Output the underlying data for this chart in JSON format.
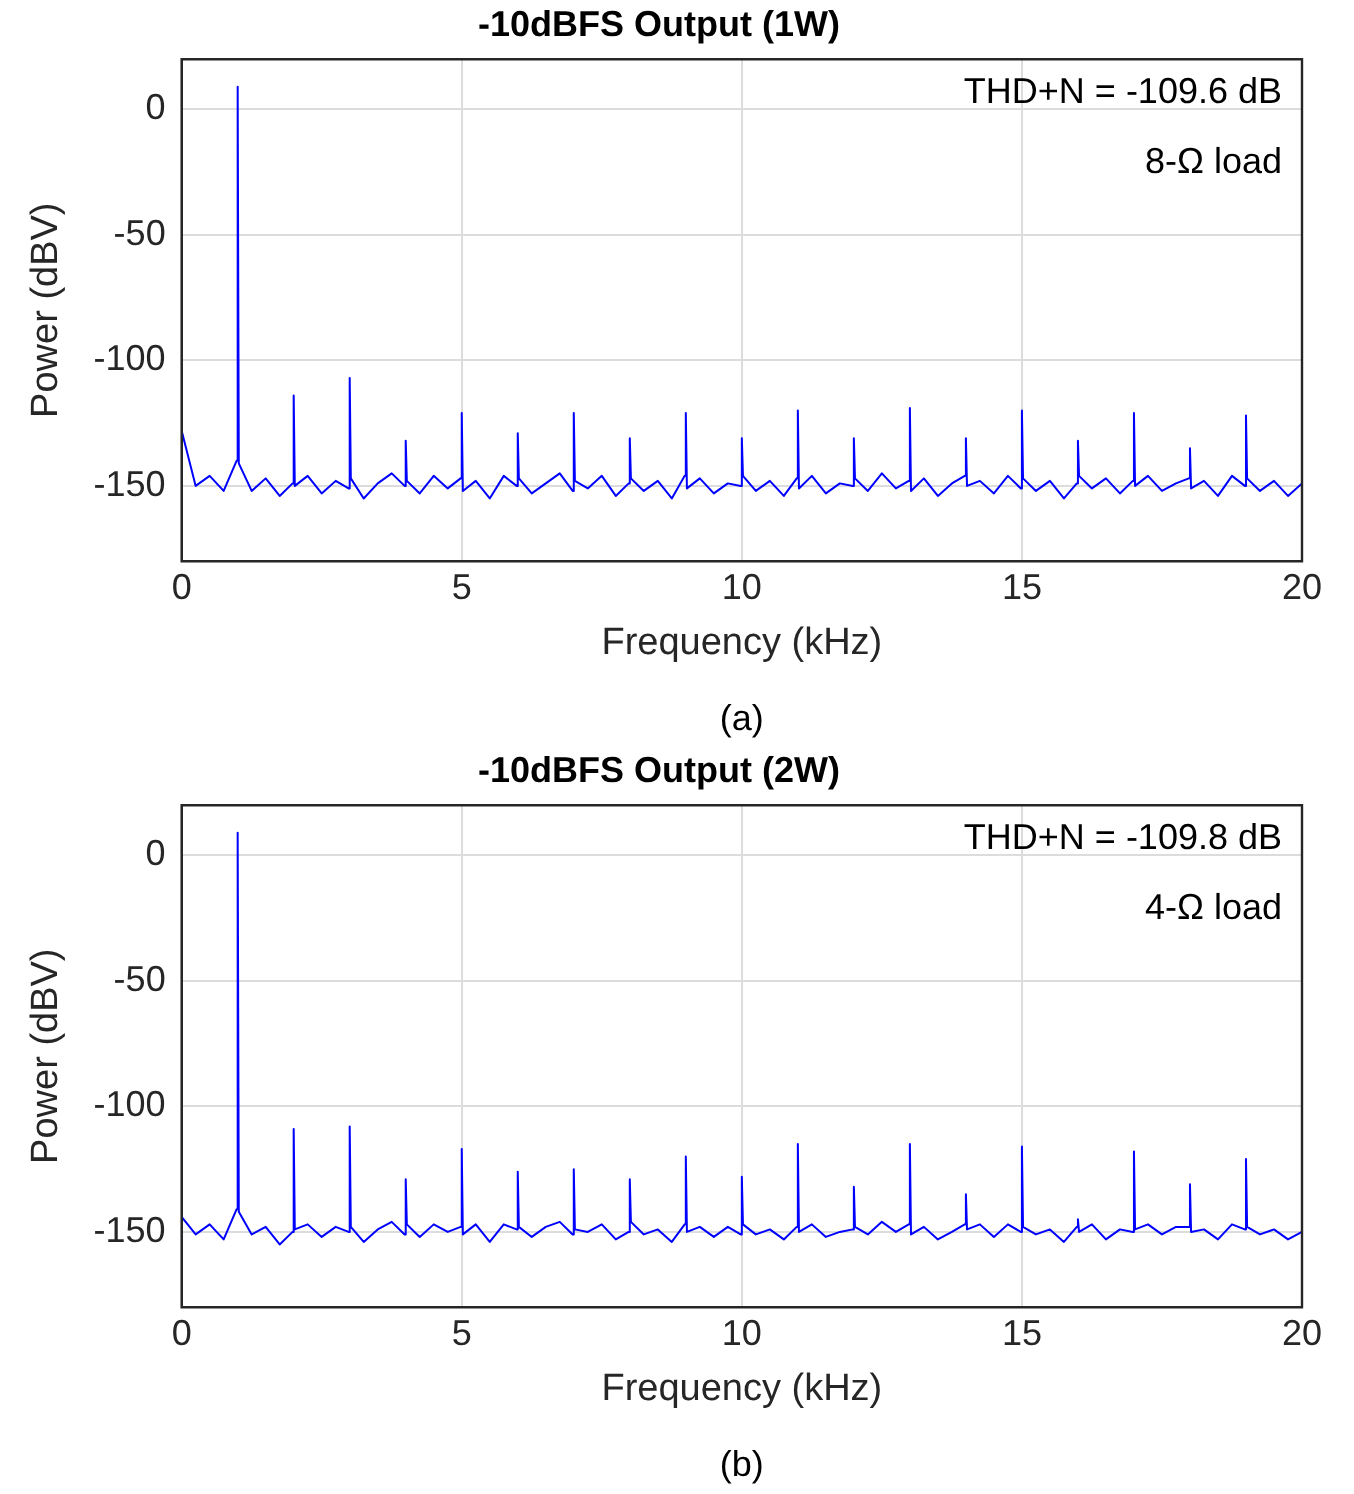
{
  "chart_data": [
    {
      "type": "line",
      "title": "-10dBFS Output (1W)",
      "xlabel": "Frequency (kHz)",
      "ylabel": "Power (dBV)",
      "annotations": [
        "THD+N = -109.6 dB",
        "8-Ω load",
        "(a)"
      ],
      "x": [
        0,
        0.25,
        0.5,
        0.75,
        0.98,
        1,
        1.02,
        1.25,
        1.5,
        1.75,
        1.98,
        2,
        2.02,
        2.25,
        2.5,
        2.75,
        2.98,
        3,
        3.02,
        3.25,
        3.5,
        3.75,
        3.98,
        4,
        4.02,
        4.25,
        4.5,
        4.75,
        4.98,
        5,
        5.02,
        5.25,
        5.5,
        5.75,
        5.98,
        6,
        6.02,
        6.25,
        6.5,
        6.75,
        6.98,
        7,
        7.02,
        7.25,
        7.5,
        7.75,
        7.98,
        8,
        8.02,
        8.25,
        8.5,
        8.75,
        8.98,
        9,
        9.02,
        9.25,
        9.5,
        9.75,
        9.98,
        10,
        10.02,
        10.25,
        10.5,
        10.75,
        10.98,
        11,
        11.02,
        11.25,
        11.5,
        11.75,
        11.98,
        12,
        12.02,
        12.25,
        12.5,
        12.75,
        12.98,
        13,
        13.02,
        13.25,
        13.5,
        13.75,
        13.98,
        14,
        14.02,
        14.25,
        14.5,
        14.75,
        14.98,
        15,
        15.02,
        15.25,
        15.5,
        15.75,
        15.98,
        16,
        16.02,
        16.25,
        16.5,
        16.75,
        16.98,
        17,
        17.02,
        17.25,
        17.5,
        17.75,
        17.98,
        18,
        18.02,
        18.25,
        18.5,
        18.75,
        18.98,
        19,
        19.02,
        19.25,
        19.5,
        19.75,
        20
      ],
      "series": [
        {
          "color": "#0000ff",
          "values": [
            -128,
            -150,
            -146,
            -152,
            -140,
            9,
            -141,
            -152,
            -147,
            -154,
            -149,
            -114,
            -150,
            -146,
            -153,
            -148,
            -151,
            -107,
            -147,
            -155,
            -149,
            -145,
            -150,
            -132,
            -148,
            -153,
            -146,
            -151,
            -147,
            -121,
            -152,
            -148,
            -155,
            -146,
            -150,
            -129,
            -147,
            -153,
            -149,
            -145,
            -152,
            -121,
            -148,
            -151,
            -146,
            -154,
            -149,
            -131,
            -147,
            -152,
            -148,
            -155,
            -146,
            -121,
            -151,
            -147,
            -153,
            -149,
            -150,
            -131,
            -146,
            -152,
            -148,
            -154,
            -147,
            -120,
            -151,
            -146,
            -153,
            -149,
            -150,
            -131,
            -147,
            -152,
            -145,
            -151,
            -148,
            -119,
            -152,
            -147,
            -154,
            -149,
            -146,
            -131,
            -150,
            -148,
            -153,
            -146,
            -151,
            -120,
            -147,
            -152,
            -148,
            -155,
            -149,
            -132,
            -146,
            -151,
            -147,
            -153,
            -148,
            -121,
            -150,
            -146,
            -152,
            -149,
            -147,
            -135,
            -151,
            -148,
            -154,
            -146,
            -150,
            -122,
            -147,
            -152,
            -148,
            -154,
            -149
          ]
        }
      ],
      "xlim": [
        0,
        20
      ],
      "xticks": [
        0,
        5,
        10,
        15,
        20
      ],
      "ylim": [
        -180,
        20
      ],
      "yticks": [
        -150,
        -100,
        -50,
        0
      ],
      "grid": true,
      "legend": false,
      "marker": "none",
      "line_style": "solid"
    },
    {
      "type": "line",
      "title": "-10dBFS Output (2W)",
      "xlabel": "Frequency (kHz)",
      "ylabel": "Power (dBV)",
      "annotations": [
        "THD+N = -109.8 dB",
        "4-Ω load",
        "(b)"
      ],
      "x": [
        0,
        0.25,
        0.5,
        0.75,
        0.98,
        1,
        1.02,
        1.25,
        1.5,
        1.75,
        1.98,
        2,
        2.02,
        2.25,
        2.5,
        2.75,
        2.98,
        3,
        3.02,
        3.25,
        3.5,
        3.75,
        3.98,
        4,
        4.02,
        4.25,
        4.5,
        4.75,
        4.98,
        5,
        5.02,
        5.25,
        5.5,
        5.75,
        5.98,
        6,
        6.02,
        6.25,
        6.5,
        6.75,
        6.98,
        7,
        7.02,
        7.25,
        7.5,
        7.75,
        7.98,
        8,
        8.02,
        8.25,
        8.5,
        8.75,
        8.98,
        9,
        9.02,
        9.25,
        9.5,
        9.75,
        9.98,
        10,
        10.02,
        10.25,
        10.5,
        10.75,
        10.98,
        11,
        11.02,
        11.25,
        11.5,
        11.75,
        11.98,
        12,
        12.02,
        12.25,
        12.5,
        12.75,
        12.98,
        13,
        13.02,
        13.25,
        13.5,
        13.75,
        13.98,
        14,
        14.02,
        14.25,
        14.5,
        14.75,
        14.98,
        15,
        15.02,
        15.25,
        15.5,
        15.75,
        15.98,
        16,
        16.02,
        16.25,
        16.5,
        16.75,
        16.98,
        17,
        17.02,
        17.25,
        17.5,
        17.75,
        17.98,
        18,
        18.02,
        18.25,
        18.5,
        18.75,
        18.98,
        19,
        19.02,
        19.25,
        19.5,
        19.75,
        20
      ],
      "series": [
        {
          "color": "#0000ff",
          "values": [
            -144,
            -151,
            -147,
            -153,
            -141,
            9,
            -142,
            -151,
            -148,
            -155,
            -150,
            -109,
            -149,
            -147,
            -152,
            -148,
            -150,
            -108,
            -148,
            -154,
            -149,
            -146,
            -151,
            -129,
            -147,
            -152,
            -147,
            -150,
            -148,
            -117,
            -151,
            -147,
            -154,
            -147,
            -149,
            -126,
            -148,
            -152,
            -148,
            -146,
            -151,
            -125,
            -149,
            -150,
            -147,
            -153,
            -150,
            -129,
            -146,
            -151,
            -149,
            -154,
            -147,
            -120,
            -150,
            -148,
            -152,
            -148,
            -151,
            -128,
            -147,
            -151,
            -149,
            -153,
            -148,
            -115,
            -150,
            -147,
            -152,
            -150,
            -149,
            -132,
            -148,
            -151,
            -146,
            -150,
            -147,
            -115,
            -151,
            -148,
            -153,
            -150,
            -147,
            -135,
            -149,
            -147,
            -152,
            -147,
            -150,
            -116,
            -148,
            -151,
            -149,
            -154,
            -148,
            -145,
            -150,
            -147,
            -153,
            -149,
            -150,
            -118,
            -149,
            -147,
            -151,
            -148,
            -148,
            -131,
            -150,
            -149,
            -153,
            -147,
            -149,
            -121,
            -148,
            -151,
            -149,
            -153,
            -150
          ]
        }
      ],
      "xlim": [
        0,
        20
      ],
      "xticks": [
        0,
        5,
        10,
        15,
        20
      ],
      "ylim": [
        -180,
        20
      ],
      "yticks": [
        -150,
        -100,
        -50,
        0
      ],
      "grid": true,
      "legend": false,
      "marker": "none",
      "line_style": "solid"
    }
  ]
}
